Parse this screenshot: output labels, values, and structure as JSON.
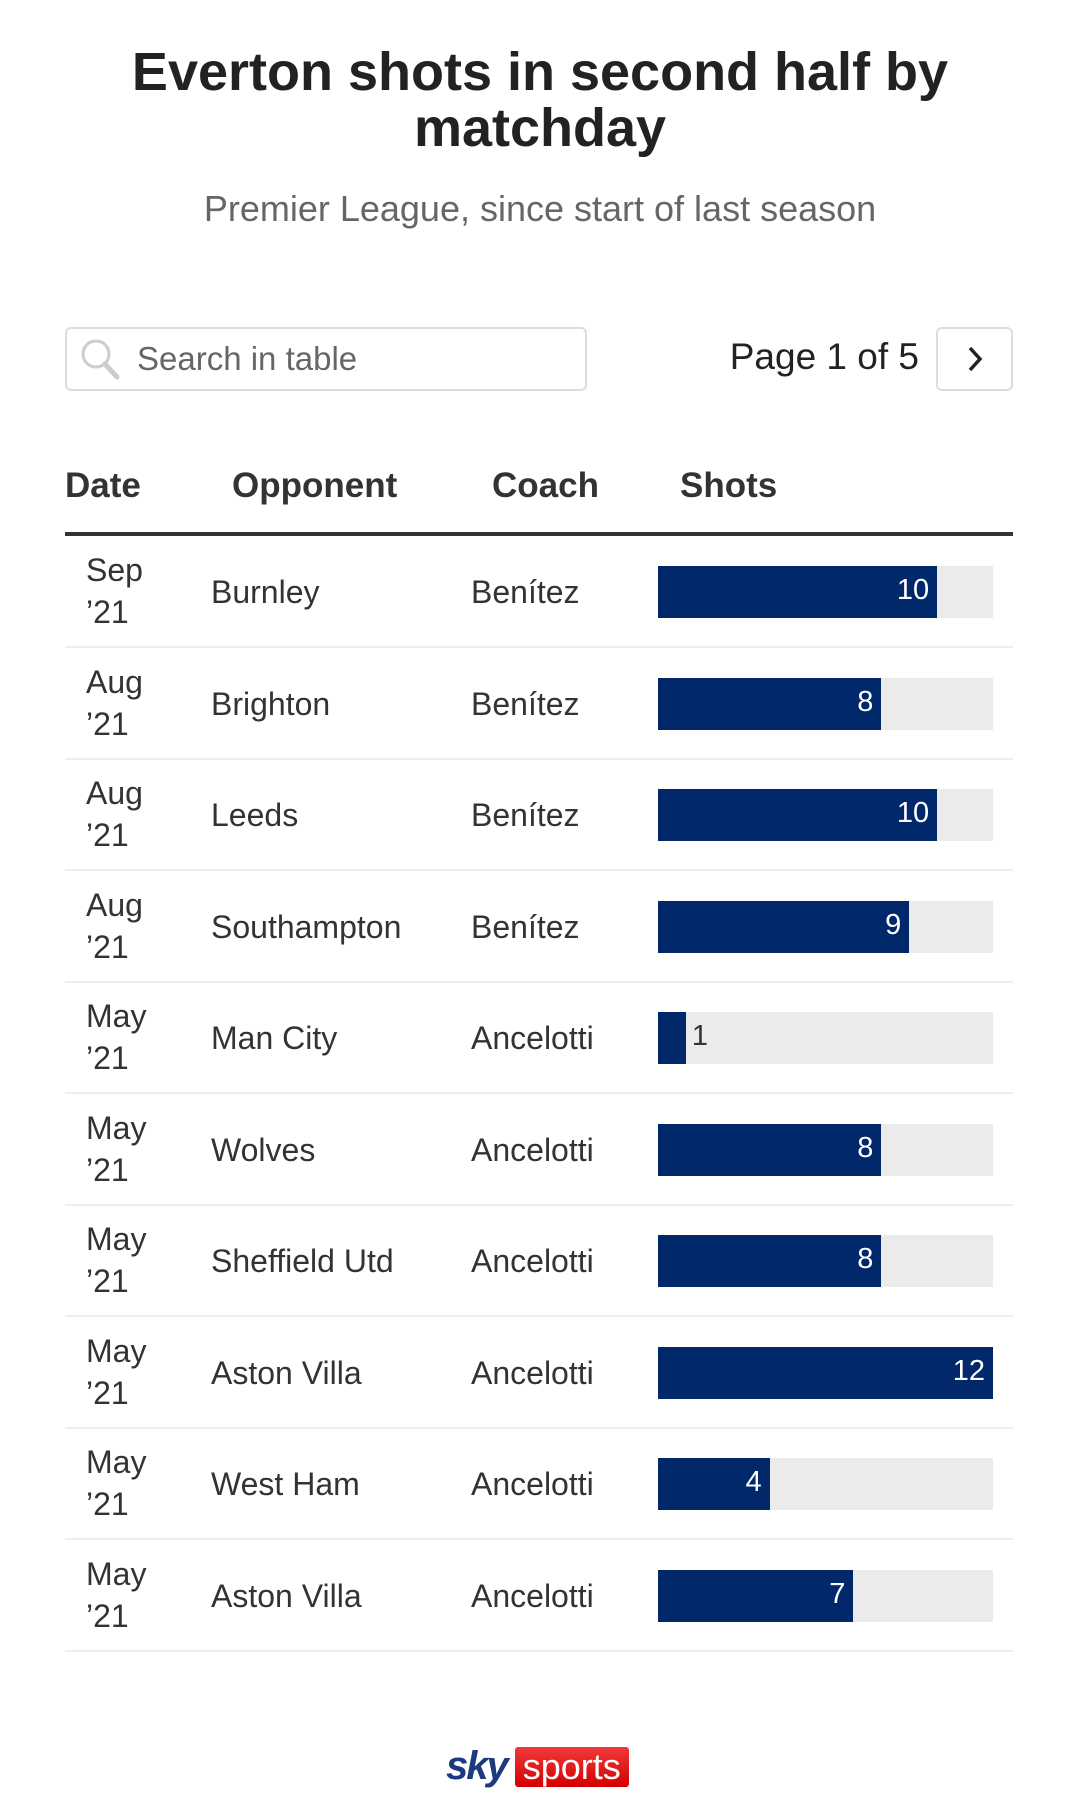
{
  "header": {
    "title": "Everton shots in second half by matchday",
    "subtitle": "Premier League, since start of last season"
  },
  "controls": {
    "search_placeholder": "Search in table",
    "page_info": "Page 1 of 5"
  },
  "table": {
    "columns": [
      "Date",
      "Opponent",
      "Coach",
      "Shots"
    ],
    "max_shots": 12,
    "bar_color": "#00286b",
    "rows": [
      {
        "date_month": "Sep",
        "date_year": "’21",
        "opponent": "Burnley",
        "coach": "Benítez",
        "shots": 10
      },
      {
        "date_month": "Aug",
        "date_year": "’21",
        "opponent": "Brighton",
        "coach": "Benítez",
        "shots": 8
      },
      {
        "date_month": "Aug",
        "date_year": "’21",
        "opponent": "Leeds",
        "coach": "Benítez",
        "shots": 10
      },
      {
        "date_month": "Aug",
        "date_year": "’21",
        "opponent": "Southampton",
        "coach": "Benítez",
        "shots": 9
      },
      {
        "date_month": "May",
        "date_year": "’21",
        "opponent": "Man City",
        "coach": "Ancelotti",
        "shots": 1
      },
      {
        "date_month": "May",
        "date_year": "’21",
        "opponent": "Wolves",
        "coach": "Ancelotti",
        "shots": 8
      },
      {
        "date_month": "May",
        "date_year": "’21",
        "opponent": "Sheffield Utd",
        "coach": "Ancelotti",
        "shots": 8
      },
      {
        "date_month": "May",
        "date_year": "’21",
        "opponent": "Aston Villa",
        "coach": "Ancelotti",
        "shots": 12
      },
      {
        "date_month": "May",
        "date_year": "’21",
        "opponent": "West Ham",
        "coach": "Ancelotti",
        "shots": 4
      },
      {
        "date_month": "May",
        "date_year": "’21",
        "opponent": "Aston Villa",
        "coach": "Ancelotti",
        "shots": 7
      }
    ]
  },
  "footer": {
    "logo_sky": "sky",
    "logo_sports": "sports"
  }
}
